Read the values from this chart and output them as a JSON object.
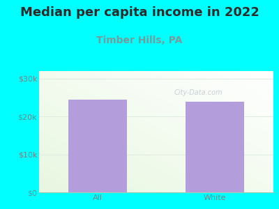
{
  "title": "Median per capita income in 2022",
  "subtitle": "Timber Hills, PA",
  "categories": [
    "All",
    "White"
  ],
  "values": [
    24500,
    24000
  ],
  "bar_color": "#b39ddb",
  "title_fontsize": 13,
  "title_color": "#2a2a2a",
  "subtitle_fontsize": 10,
  "subtitle_color": "#7a9a9a",
  "tick_label_color": "#6a8888",
  "tick_fontsize": 8,
  "bar_width": 0.5,
  "ylim": [
    0,
    32000
  ],
  "yticks": [
    0,
    10000,
    20000,
    30000
  ],
  "ytick_labels": [
    "$0",
    "$10k",
    "$20k",
    "$30k"
  ],
  "bg_outer": "#00ffff",
  "plot_bg_colors": [
    "#e8f5e0",
    "#f5fdf5",
    "#f8fff8",
    "#ffffff"
  ],
  "watermark": "City-Data.com",
  "watermark_color": "#c0c8d0",
  "grid_color": "#e0ece0"
}
